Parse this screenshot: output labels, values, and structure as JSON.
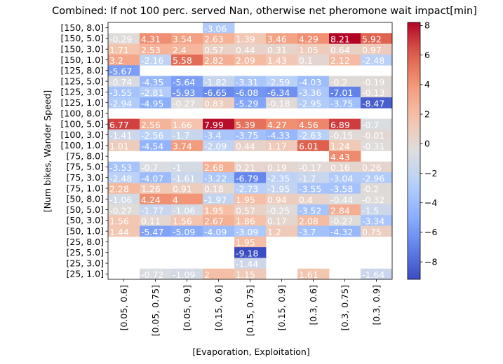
{
  "chart_data": {
    "type": "heatmap",
    "title": "Combined: If not 100 perc. served Nan, otherwise net pheromone wait impact[min]",
    "xlabel": "[Evaporation, Exploitation]",
    "ylabel": "[Num bikes, Wander Speed]",
    "x_categories": [
      "[0.05, 0.6]",
      "[0.05, 0.75]",
      "[0.05, 0.9]",
      "[0.15, 0.6]",
      "[0.15, 0.75]",
      "[0.15, 0.9]",
      "[0.3, 0.6]",
      "[0.3, 0.75]",
      "[0.3, 0.9]"
    ],
    "y_categories": [
      "[150, 8.0]",
      "[150, 5.0]",
      "[150, 3.0]",
      "[150, 1.0]",
      "[125, 8.0]",
      "[125, 5.0]",
      "[125, 3.0]",
      "[125, 1.0]",
      "[100, 8.0]",
      "[100, 5.0]",
      "[100, 3.0]",
      "[100, 1.0]",
      "[75, 8.0]",
      "[75, 5.0]",
      "[75, 3.0]",
      "[75, 1.0]",
      "[50, 8.0]",
      "[50, 5.0]",
      "[50, 3.0]",
      "[50, 1.0]",
      "[25, 8.0]",
      "[25, 5.0]",
      "[25, 3.0]",
      "[25, 1.0]"
    ],
    "nan_label": "nan",
    "values": [
      [
        null,
        null,
        null,
        -3.06,
        null,
        null,
        null,
        null,
        null
      ],
      [
        -0.29,
        4.31,
        3.54,
        2.63,
        1.39,
        3.46,
        4.29,
        8.21,
        5.92
      ],
      [
        1.71,
        2.53,
        2.4,
        0.57,
        0.44,
        0.31,
        1.05,
        0.64,
        0.97
      ],
      [
        3.2,
        -2.16,
        5.58,
        2.82,
        2.09,
        1.43,
        0.1,
        2.12,
        -2.48
      ],
      [
        -5.67,
        null,
        null,
        null,
        null,
        null,
        null,
        null,
        null
      ],
      [
        -0.74,
        -4.35,
        -5.64,
        -1.82,
        -3.31,
        -2.59,
        -4.03,
        -0.2,
        -0.19
      ],
      [
        -3.55,
        -2.81,
        -5.93,
        -6.65,
        -6.08,
        -6.34,
        -3.36,
        -7.01,
        -0.13
      ],
      [
        -2.94,
        -4.95,
        -0.27,
        0.83,
        -5.29,
        -0.18,
        -2.95,
        -3.75,
        -8.47
      ],
      [
        null,
        null,
        null,
        null,
        null,
        null,
        null,
        null,
        null
      ],
      [
        6.77,
        2.56,
        1.66,
        7.99,
        5.39,
        4.27,
        4.56,
        6.89,
        -0.7
      ],
      [
        -1.41,
        -2.56,
        -1.7,
        -3.4,
        -3.75,
        -4.33,
        -2.63,
        -0.15,
        -0.01
      ],
      [
        1.01,
        -4.54,
        3.74,
        -2.09,
        0.44,
        1.17,
        6.01,
        1.24,
        -0.31
      ],
      [
        null,
        null,
        null,
        null,
        null,
        null,
        null,
        4.43,
        null
      ],
      [
        -3.53,
        -0.7,
        -1.0,
        2.68,
        0.21,
        0.19,
        -0.17,
        0.16,
        0.26
      ],
      [
        -2.48,
        -4.07,
        -1.61,
        -3.22,
        -6.79,
        -2.35,
        -1.7,
        -3.04,
        -2.96
      ],
      [
        2.28,
        1.26,
        0.91,
        0.18,
        -2.73,
        -1.95,
        -3.55,
        -3.58,
        -0.2
      ],
      [
        -1.06,
        4.24,
        4.0,
        -1.97,
        1.95,
        0.94,
        0.4,
        -0.44,
        -0.32
      ],
      [
        -0.27,
        -1.77,
        -1.06,
        1.95,
        0.57,
        -0.25,
        -3.52,
        2.84,
        -1.5
      ],
      [
        1.56,
        0.11,
        1.56,
        2.67,
        1.86,
        0.17,
        2.08,
        -0.27,
        -3.34
      ],
      [
        1.44,
        -5.47,
        -5.09,
        -4.09,
        -3.09,
        1.2,
        -3.7,
        -4.32,
        0.75
      ],
      [
        null,
        null,
        null,
        null,
        1.95,
        null,
        null,
        null,
        null
      ],
      [
        null,
        null,
        null,
        null,
        -9.18,
        null,
        null,
        null,
        null
      ],
      [
        null,
        null,
        null,
        null,
        -1.44,
        null,
        null,
        null,
        null
      ],
      [
        null,
        -0.72,
        -1.09,
        2.0,
        1.15,
        null,
        1.61,
        null,
        -1.64
      ]
    ],
    "colormap": "coolwarm",
    "vmin": -9.18,
    "vmax": 8.21,
    "colorbar_ticks": [
      -8,
      -6,
      -4,
      -2,
      0,
      2,
      4,
      6,
      8
    ],
    "grid": false
  }
}
